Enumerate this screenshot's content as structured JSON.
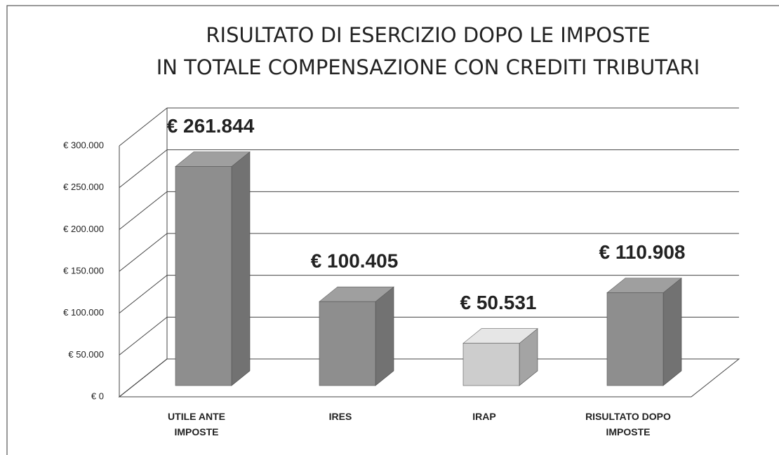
{
  "chart_data": {
    "type": "bar3d",
    "title": [
      "RISULTATO DI ESERCIZIO DOPO LE IMPOSTE",
      "IN TOTALE COMPENSAZIONE CON CREDITI TRIBUTARI"
    ],
    "categories": [
      "UTILE ANTE IMPOSTE",
      "IRES",
      "IRAP",
      "RISULTATO DOPO IMPOSTE"
    ],
    "values": [
      261844,
      100405,
      50531,
      110908
    ],
    "value_labels": [
      "€ 261.844",
      "€ 100.405",
      "€ 50.531",
      "€ 110.908"
    ],
    "colors": [
      "#8e8e8e",
      "#8e8e8e",
      "#cdcdcd",
      "#8e8e8e"
    ],
    "ylim": [
      0,
      300000
    ],
    "yticks": [
      {
        "value": 0,
        "label": "€ 0"
      },
      {
        "value": 50000,
        "label": "€ 50.000"
      },
      {
        "value": 100000,
        "label": "€ 100.000"
      },
      {
        "value": 150000,
        "label": "€ 150.000"
      },
      {
        "value": 200000,
        "label": "€ 200.000"
      },
      {
        "value": 250000,
        "label": "€ 250.000"
      },
      {
        "value": 300000,
        "label": "€ 300.000"
      }
    ],
    "grid": true
  }
}
